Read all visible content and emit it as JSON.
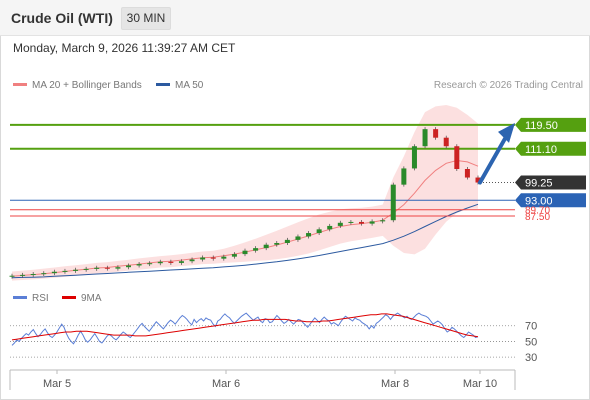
{
  "header": {
    "title": "Crude Oil (WTI)",
    "timeframe_button": "30 MIN"
  },
  "datetime": "Monday, March 9, 2026 11:39:27 AM CET",
  "legend": {
    "bollinger_label": "MA 20 + Bollinger Bands",
    "bollinger_color": "#f08080",
    "ma50_label": "MA 50",
    "ma50_color": "#2c5aa0"
  },
  "research_credit": "Research © 2026 Trading Central",
  "rsi_legend": {
    "rsi_label": "RSI",
    "rsi_color": "#5b7fd6",
    "ma_label": "9MA",
    "ma_color": "#dd0000"
  },
  "colors": {
    "candle_up": "#2a8a2a",
    "candle_down": "#cc2222",
    "resistance": "#55a010",
    "support": "#2b63b5",
    "current": "#333333",
    "pivot": "#ee4444",
    "band_fill": "#fbd6d6",
    "arrow": "#2c64b0"
  },
  "chart_data": [
    {
      "type": "candlestick",
      "x_labels": [
        "Mar 5",
        "Mar 6",
        "Mar 8",
        "Mar 10"
      ],
      "ylim": [
        65,
        130
      ],
      "close": [
        66.5,
        66.8,
        67.1,
        67.4,
        67.9,
        68.2,
        68.6,
        68.9,
        69.3,
        69.0,
        69.5,
        70.1,
        70.6,
        70.9,
        71.4,
        71.0,
        71.6,
        72.2,
        72.9,
        72.5,
        73.2,
        74.1,
        75.3,
        76.2,
        77.4,
        78.0,
        79.1,
        80.3,
        81.5,
        82.8,
        84.0,
        85.1,
        85.4,
        84.8,
        85.6,
        86.0,
        98.5,
        104.2,
        112.0,
        118.0,
        115.0,
        112.0,
        104.0,
        101.0,
        99.25
      ],
      "bollinger_mid": [
        66.3,
        66.6,
        66.9,
        67.2,
        67.6,
        68.0,
        68.4,
        68.8,
        69.2,
        69.4,
        69.8,
        70.2,
        70.6,
        71.0,
        71.4,
        71.6,
        72.0,
        72.4,
        72.8,
        73.0,
        73.5,
        74.1,
        74.8,
        75.6,
        76.4,
        77.3,
        78.3,
        79.4,
        80.5,
        81.7,
        82.8,
        83.8,
        84.4,
        84.8,
        85.3,
        86.0,
        88.5,
        91.5,
        95.5,
        100.0,
        103.5,
        106.0,
        107.0,
        106.5,
        105.0
      ],
      "bollinger_upper": [
        68.0,
        68.3,
        68.6,
        69.0,
        69.4,
        69.8,
        70.2,
        70.6,
        71.0,
        71.3,
        71.7,
        72.1,
        72.6,
        73.0,
        73.4,
        73.7,
        74.1,
        74.6,
        75.0,
        75.3,
        76.0,
        77.0,
        78.2,
        79.5,
        80.9,
        82.3,
        83.8,
        85.3,
        86.7,
        88.0,
        89.0,
        89.8,
        90.2,
        90.4,
        90.8,
        91.5,
        101.0,
        108.5,
        117.0,
        124.0,
        126.0,
        126.5,
        125.5,
        123.0,
        120.0
      ],
      "bollinger_lower": [
        64.8,
        65.0,
        65.2,
        65.5,
        65.8,
        66.1,
        66.5,
        66.9,
        67.3,
        67.5,
        67.9,
        68.3,
        68.6,
        69.0,
        69.4,
        69.5,
        69.9,
        70.2,
        70.6,
        70.7,
        71.0,
        71.2,
        71.4,
        71.7,
        71.9,
        72.3,
        72.8,
        73.5,
        74.3,
        75.4,
        76.6,
        77.8,
        78.6,
        79.2,
        79.8,
        80.5,
        77.0,
        74.5,
        74.0,
        76.0,
        81.0,
        85.5,
        88.5,
        90.0,
        90.0
      ],
      "ma50": [
        65.8,
        65.9,
        66.0,
        66.1,
        66.3,
        66.5,
        66.7,
        66.9,
        67.1,
        67.3,
        67.5,
        67.7,
        67.9,
        68.1,
        68.3,
        68.5,
        68.7,
        68.9,
        69.1,
        69.3,
        69.6,
        69.9,
        70.2,
        70.6,
        71.0,
        71.4,
        71.9,
        72.4,
        73.0,
        73.6,
        74.3,
        75.0,
        75.7,
        76.4,
        77.1,
        77.8,
        79.0,
        80.4,
        82.0,
        83.8,
        85.6,
        87.3,
        88.9,
        90.3,
        91.6
      ],
      "levels": [
        {
          "label": "119.50",
          "value": 119.5,
          "kind": "resistance"
        },
        {
          "label": "111.10",
          "value": 111.1,
          "kind": "resistance"
        },
        {
          "label": "99.25",
          "value": 99.25,
          "kind": "current"
        },
        {
          "label": "93.00",
          "value": 93.0,
          "kind": "support"
        },
        {
          "label": "89.70",
          "value": 89.7,
          "kind": "pivot"
        },
        {
          "label": "87.50",
          "value": 87.5,
          "kind": "pivot"
        }
      ],
      "projection": {
        "from": 99.25,
        "to": 119.5
      }
    },
    {
      "type": "line",
      "name": "RSI",
      "yticks": [
        70,
        50,
        30
      ],
      "ylim": [
        20,
        90
      ],
      "rsi": [
        45,
        48,
        52,
        50,
        54,
        57,
        60,
        58,
        62,
        65,
        60,
        56,
        59,
        63,
        66,
        61,
        57,
        55,
        58,
        62,
        67,
        72,
        68,
        60,
        54,
        50,
        47,
        52,
        58,
        63,
        58,
        52,
        49,
        52,
        56,
        60,
        55,
        50,
        48,
        52,
        56,
        59,
        57,
        54,
        52,
        55,
        59,
        62,
        60,
        57,
        55,
        58,
        62,
        66,
        70,
        73,
        69,
        66,
        63,
        67,
        71,
        75,
        72,
        69,
        66,
        70,
        74,
        77,
        75,
        72,
        76,
        80,
        83,
        81,
        78,
        74,
        71,
        78,
        74,
        77,
        79,
        76,
        80,
        78,
        77,
        72,
        69,
        76,
        78,
        82,
        85,
        82,
        80,
        76,
        73,
        76,
        79,
        82,
        84,
        86,
        83,
        80,
        77,
        79,
        81,
        76,
        74,
        79,
        78,
        74,
        75,
        79,
        83,
        80,
        76,
        73,
        75,
        78,
        75,
        72,
        75,
        78,
        77,
        74,
        71,
        68,
        72,
        76,
        80,
        77,
        74,
        78,
        81,
        78,
        76,
        72,
        74,
        72,
        70,
        75,
        79,
        82,
        80,
        78,
        76,
        80,
        78,
        77,
        74,
        72,
        70,
        66,
        70,
        67,
        73,
        75,
        78,
        81,
        84,
        82,
        78,
        82,
        84,
        86,
        84,
        82,
        80,
        82,
        79,
        78,
        81,
        84,
        86,
        84,
        83,
        82,
        80,
        76,
        72,
        74,
        76,
        74,
        71,
        66,
        62,
        64,
        68,
        66,
        63,
        60,
        57,
        55,
        58,
        62,
        60,
        58,
        55,
        56
      ],
      "ma9": [
        52,
        53,
        54,
        55,
        56,
        57,
        58,
        59,
        60,
        61,
        62,
        62,
        63,
        63,
        63,
        62,
        61,
        60,
        59,
        58,
        58,
        58,
        58,
        57,
        57,
        57,
        58,
        59,
        60,
        61,
        62,
        63,
        64,
        65,
        66,
        67,
        68,
        69,
        70,
        71,
        72,
        73,
        74,
        75,
        76,
        77,
        77,
        78,
        78,
        78,
        78,
        78,
        77,
        76,
        76,
        75,
        75,
        75,
        76,
        76,
        77,
        78,
        79,
        80,
        81,
        82,
        83,
        84,
        84,
        85,
        85,
        84,
        83,
        82,
        80,
        78,
        76,
        74,
        72,
        70,
        68,
        66,
        64,
        62,
        60,
        58,
        57,
        56
      ]
    }
  ]
}
